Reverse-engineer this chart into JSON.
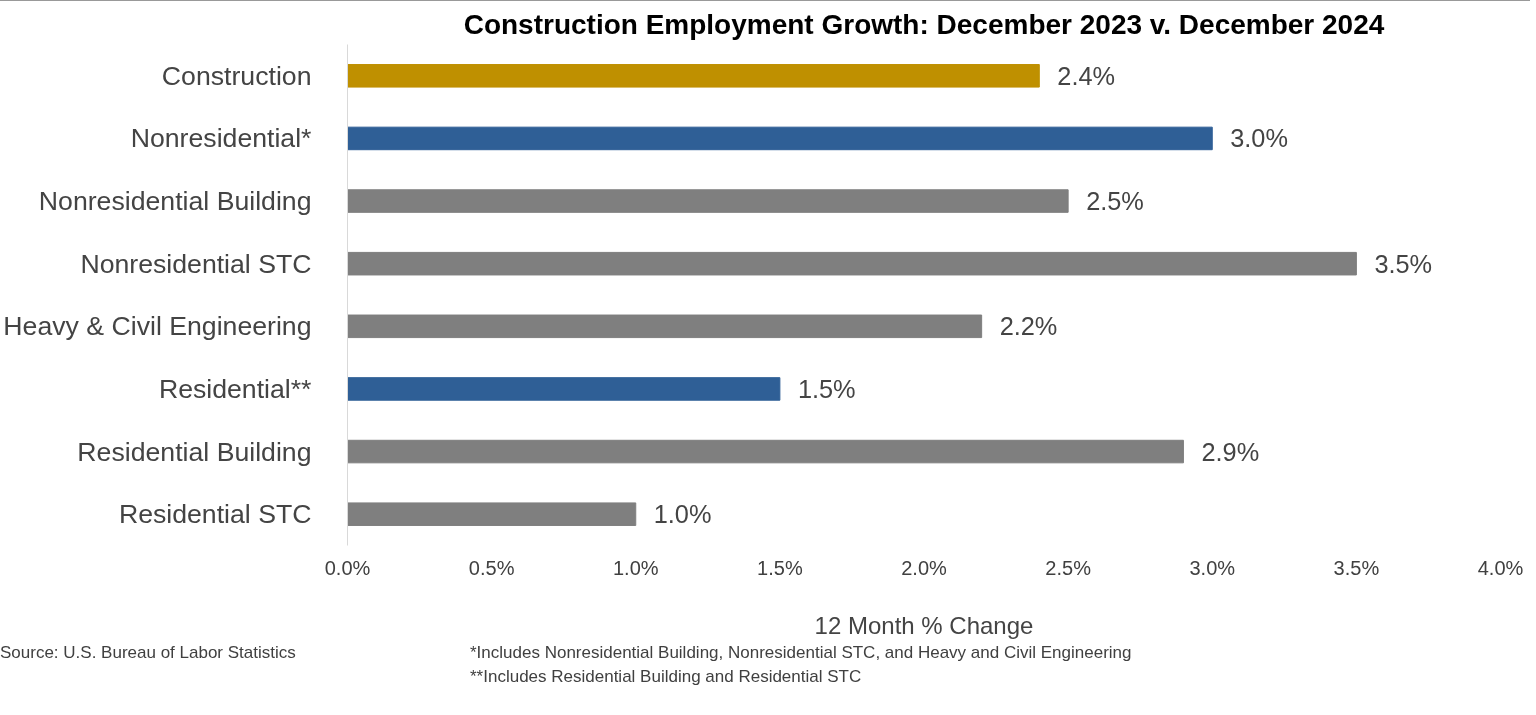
{
  "chart_data": {
    "type": "bar",
    "orientation": "horizontal",
    "title": "Construction Employment Growth: December 2023 v. December 2024",
    "xlabel": "12 Month % Change",
    "categories": [
      "Construction",
      "Nonresidential*",
      "Nonresidential Building",
      "Nonresidential STC",
      "Heavy & Civil Engineering",
      "Residential**",
      "Residential Building",
      "Residential STC"
    ],
    "values": [
      2.4,
      3.0,
      2.5,
      3.5,
      2.2,
      1.5,
      2.9,
      1.0
    ],
    "colors": [
      "#bf9000",
      "#2f5f96",
      "#7f7f7f",
      "#7f7f7f",
      "#7f7f7f",
      "#2f5f96",
      "#7f7f7f",
      "#7f7f7f"
    ],
    "value_labels": [
      "2.4%",
      "3.0%",
      "2.5%",
      "3.5%",
      "2.2%",
      "1.5%",
      "2.9%",
      "1.0%"
    ],
    "xlim": [
      0,
      4
    ],
    "xticks": [
      {
        "value": 0,
        "label": "0.0%"
      },
      {
        "value": 0.5,
        "label": "0.5%"
      },
      {
        "value": 1,
        "label": "1.0%"
      },
      {
        "value": 1.5,
        "label": "1.5%"
      },
      {
        "value": 2,
        "label": "2.0%"
      },
      {
        "value": 2.5,
        "label": "2.5%"
      },
      {
        "value": 3,
        "label": "3.0%"
      },
      {
        "value": 3.5,
        "label": "3.5%"
      },
      {
        "value": 4,
        "label": "4.0%"
      }
    ],
    "grid": false,
    "annotations": [
      "Source:  U.S. Bureau of Labor Statistics",
      "*Includes Nonresidential Building, Nonresidential STC, and Heavy and Civil Engineering",
      "**Includes Residential Building and Residential STC"
    ]
  }
}
